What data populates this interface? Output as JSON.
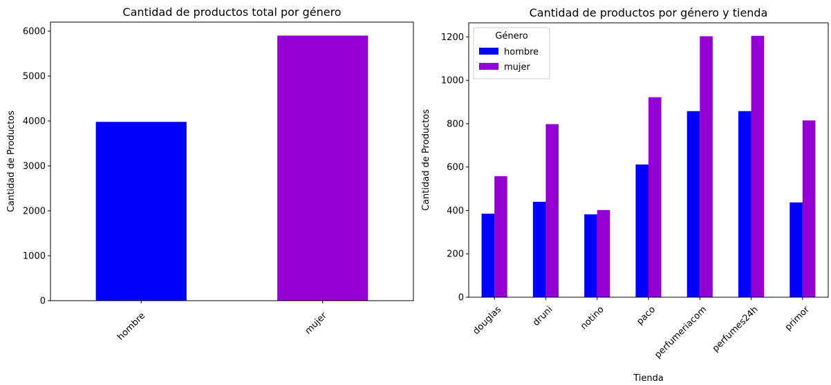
{
  "chart_data": [
    {
      "type": "bar",
      "title": "Cantidad de productos total por género",
      "xlabel": "",
      "ylabel": "Cantidad de Productos",
      "categories": [
        "hombre",
        "mujer"
      ],
      "values": [
        3980,
        5900
      ],
      "colors": [
        "#0000ff",
        "#9400d3"
      ],
      "ylim": [
        0,
        6200
      ],
      "yticks": [
        "0",
        "1000",
        "2000",
        "3000",
        "4000",
        "5000",
        "6000"
      ],
      "grid": false
    },
    {
      "type": "bar",
      "title": "Cantidad de productos por género y tienda",
      "xlabel": "Tienda",
      "ylabel": "Cantidad de Productos",
      "categories": [
        "douglas",
        "druni",
        "notino",
        "paco",
        "perfumeriacom",
        "perfumes24h",
        "primor"
      ],
      "series": [
        {
          "name": "hombre",
          "color": "#0000ff",
          "values": [
            385,
            440,
            382,
            612,
            858,
            858,
            437
          ]
        },
        {
          "name": "mujer",
          "color": "#9400d3",
          "values": [
            558,
            798,
            402,
            922,
            1203,
            1205,
            815
          ]
        }
      ],
      "ylim": [
        0,
        1265
      ],
      "yticks": [
        "0",
        "200",
        "400",
        "600",
        "800",
        "1000",
        "1200"
      ],
      "legend": {
        "title": "Género",
        "placement": "top-left"
      },
      "grid": false
    }
  ]
}
